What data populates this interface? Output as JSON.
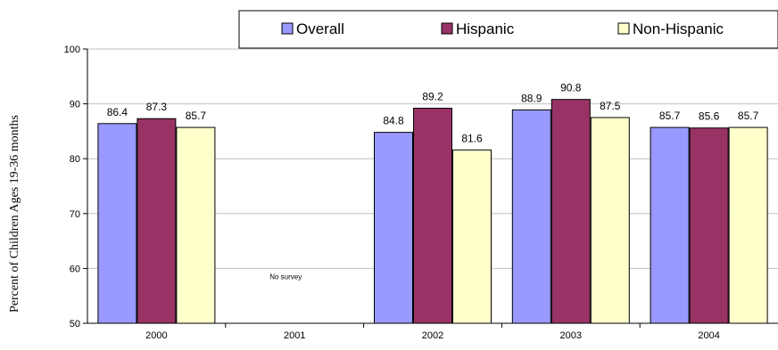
{
  "chart_data": {
    "type": "bar",
    "title": "",
    "xlabel": "",
    "ylabel": "Percent of Children Ages 19-36 months",
    "ylim": [
      50,
      100
    ],
    "yticks": [
      50,
      60,
      70,
      80,
      90,
      100
    ],
    "grid": true,
    "legend_position": "top-right",
    "categories": [
      "2000",
      "2001",
      "2002",
      "2003",
      "2004"
    ],
    "series": [
      {
        "name": "Overall",
        "color": "#9999ff",
        "values": [
          86.4,
          null,
          84.8,
          88.9,
          85.7
        ],
        "labels": [
          "86.4",
          "",
          "84.8",
          "88.9",
          "85.7"
        ]
      },
      {
        "name": "Hispanic",
        "color": "#993366",
        "values": [
          87.3,
          null,
          89.2,
          90.8,
          85.6
        ],
        "labels": [
          "87.3",
          "",
          "89.2",
          "90.8",
          "85.6"
        ]
      },
      {
        "name": "Non-Hispanic",
        "color": "#ffffcc",
        "values": [
          85.7,
          null,
          81.6,
          87.5,
          85.7
        ],
        "labels": [
          "85.7",
          "",
          "81.6",
          "87.5",
          "85.7"
        ]
      }
    ],
    "annotations": [
      {
        "category": "2001",
        "text": "No survey"
      }
    ]
  }
}
